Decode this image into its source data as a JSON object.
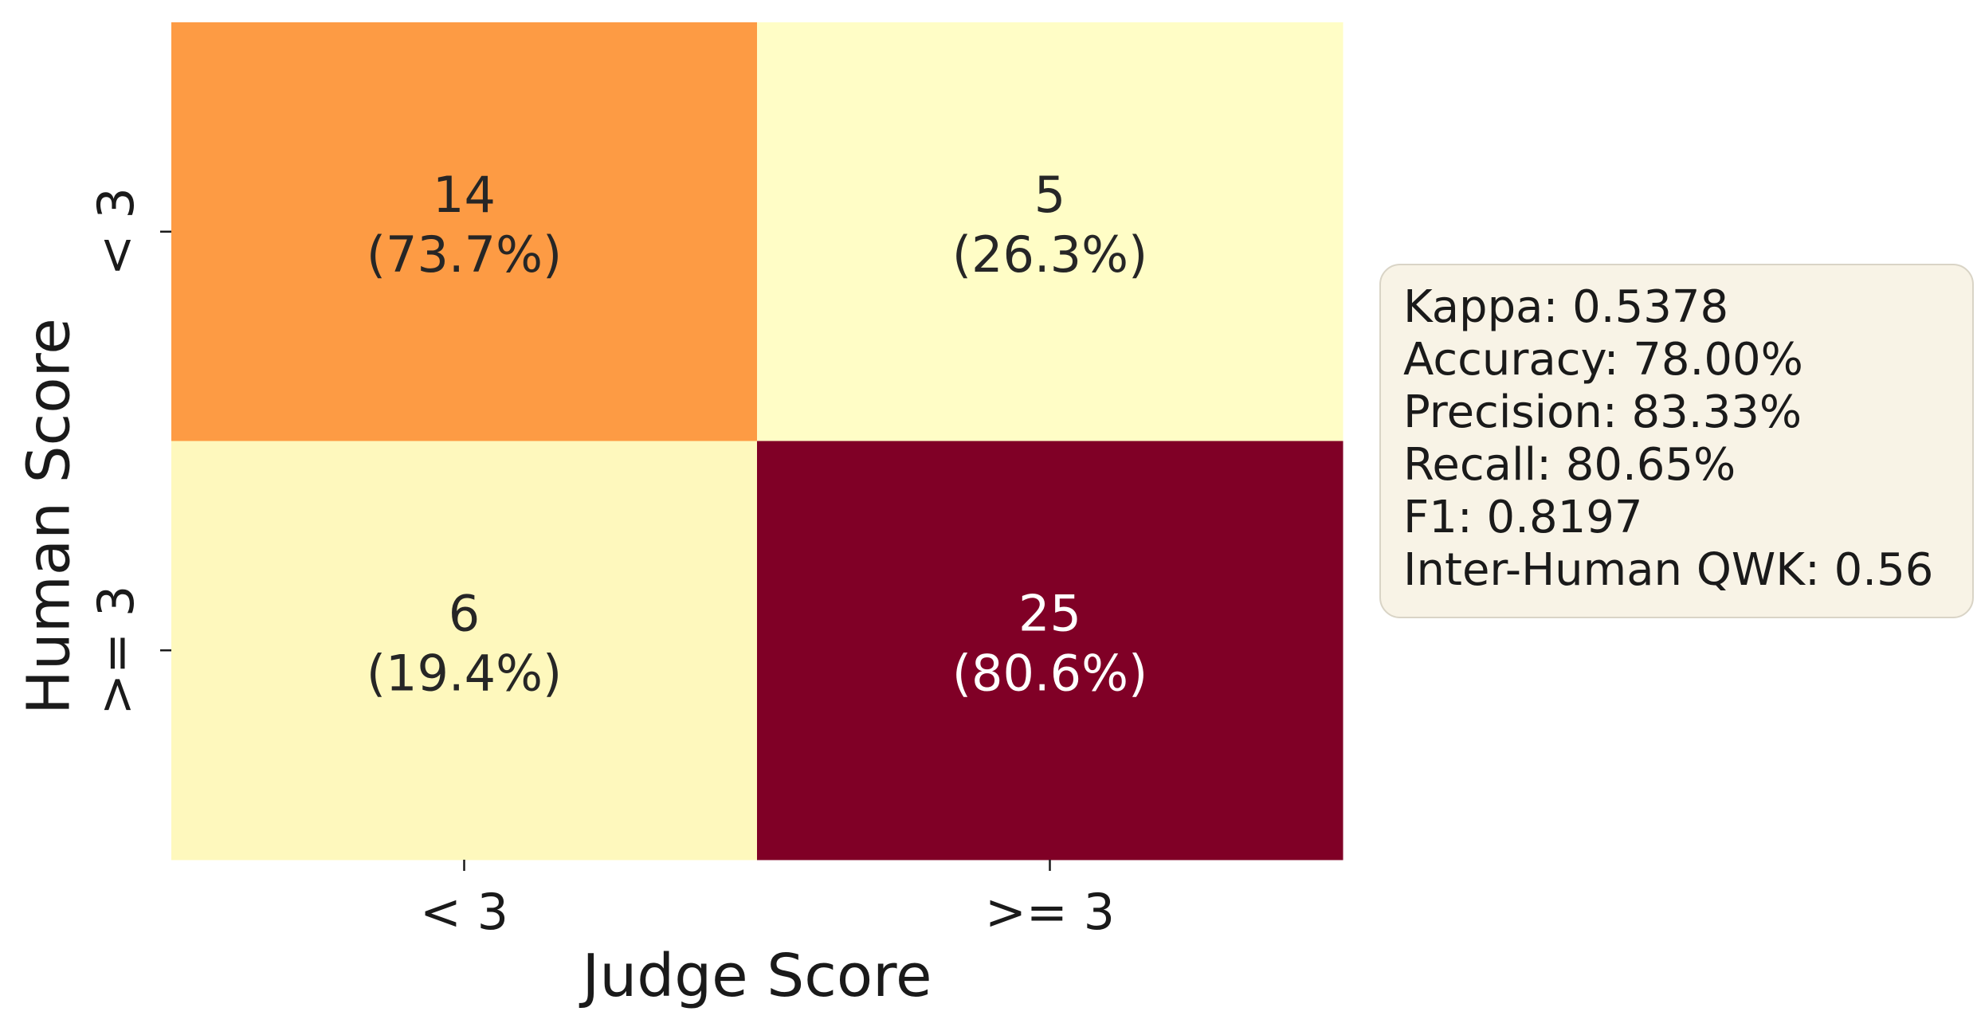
{
  "chart_data": {
    "type": "heatmap",
    "xlabel": "Judge Score",
    "ylabel": "Human Score",
    "x_categories": [
      "< 3",
      ">= 3"
    ],
    "y_categories": [
      "< 3",
      ">= 3"
    ],
    "values": [
      [
        14,
        5
      ],
      [
        6,
        25
      ]
    ],
    "row_percentages": [
      [
        "(73.7%)",
        "(26.3%)"
      ],
      [
        "(19.4%)",
        "(80.6%)"
      ]
    ],
    "colormap": "YlOrRd",
    "cell_colors": [
      [
        "#fd9b44",
        "#fffdc6"
      ],
      [
        "#fef8bd",
        "#800026"
      ]
    ],
    "text_colors": [
      [
        "#262626",
        "#262626"
      ],
      [
        "#262626",
        "#ffffff"
      ]
    ],
    "colorbar": false
  },
  "stats": {
    "lines": [
      "Kappa: 0.5378",
      "Accuracy: 78.00%",
      "Precision: 83.33%",
      "Recall: 80.65%",
      "F1: 0.8197",
      "Inter-Human QWK: 0.56"
    ]
  }
}
